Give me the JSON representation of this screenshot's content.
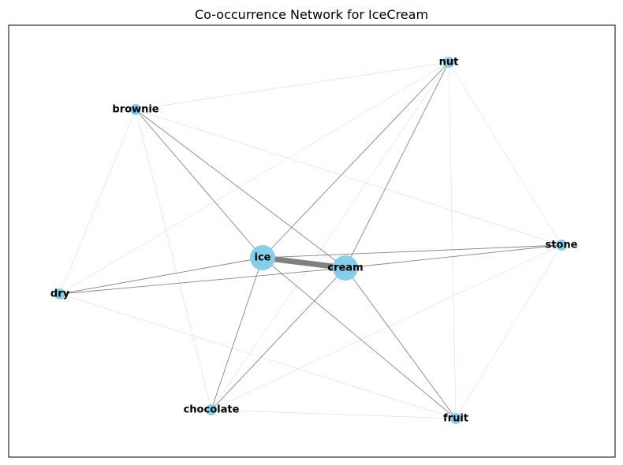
{
  "title": "Co-occurrence Network for IceCream",
  "colors": {
    "node": "#87ceeb",
    "edge": "#808080",
    "frame": "#000000",
    "background": "#ffffff"
  },
  "nodes": [
    {
      "id": "ice",
      "label": "ice",
      "size": "large"
    },
    {
      "id": "cream",
      "label": "cream",
      "size": "large"
    },
    {
      "id": "nut",
      "label": "nut",
      "size": "small"
    },
    {
      "id": "brownie",
      "label": "brownie",
      "size": "small"
    },
    {
      "id": "stone",
      "label": "stone",
      "size": "small"
    },
    {
      "id": "dry",
      "label": "dry",
      "size": "small"
    },
    {
      "id": "chocolate",
      "label": "chocolate",
      "size": "small"
    },
    {
      "id": "fruit",
      "label": "fruit",
      "size": "small"
    }
  ],
  "edges": [
    {
      "source": "ice",
      "target": "cream",
      "weight": 10
    },
    {
      "source": "ice",
      "target": "nut",
      "weight": 2
    },
    {
      "source": "ice",
      "target": "brownie",
      "weight": 2
    },
    {
      "source": "ice",
      "target": "stone",
      "weight": 2
    },
    {
      "source": "ice",
      "target": "dry",
      "weight": 2
    },
    {
      "source": "ice",
      "target": "chocolate",
      "weight": 2
    },
    {
      "source": "ice",
      "target": "fruit",
      "weight": 2
    },
    {
      "source": "cream",
      "target": "nut",
      "weight": 2
    },
    {
      "source": "cream",
      "target": "brownie",
      "weight": 2
    },
    {
      "source": "cream",
      "target": "stone",
      "weight": 2
    },
    {
      "source": "cream",
      "target": "dry",
      "weight": 2
    },
    {
      "source": "cream",
      "target": "chocolate",
      "weight": 2
    },
    {
      "source": "cream",
      "target": "fruit",
      "weight": 2
    },
    {
      "source": "nut",
      "target": "brownie",
      "weight": 1
    },
    {
      "source": "nut",
      "target": "stone",
      "weight": 1
    },
    {
      "source": "nut",
      "target": "dry",
      "weight": 1
    },
    {
      "source": "nut",
      "target": "chocolate",
      "weight": 1
    },
    {
      "source": "nut",
      "target": "fruit",
      "weight": 1
    },
    {
      "source": "brownie",
      "target": "stone",
      "weight": 1
    },
    {
      "source": "brownie",
      "target": "dry",
      "weight": 1
    },
    {
      "source": "brownie",
      "target": "chocolate",
      "weight": 1
    },
    {
      "source": "stone",
      "target": "chocolate",
      "weight": 1
    },
    {
      "source": "stone",
      "target": "fruit",
      "weight": 1
    },
    {
      "source": "dry",
      "target": "fruit",
      "weight": 1
    },
    {
      "source": "chocolate",
      "target": "fruit",
      "weight": 1
    }
  ]
}
